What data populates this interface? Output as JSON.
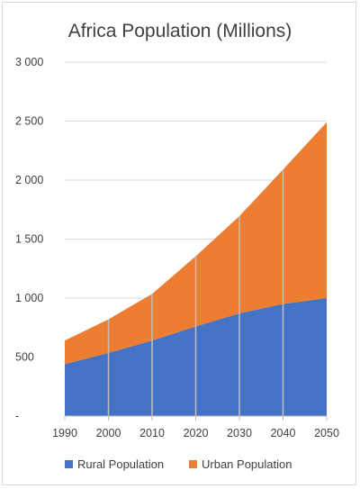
{
  "chart_data": {
    "type": "area",
    "stacked": true,
    "title": "Africa Population (Millions)",
    "xlabel": "",
    "ylabel": "",
    "x": [
      1990,
      2000,
      2010,
      2020,
      2030,
      2040,
      2050
    ],
    "x_tick_labels": [
      "1990",
      "2000",
      "2010",
      "2020",
      "2030",
      "2040",
      "2050"
    ],
    "ylim": [
      0,
      3000
    ],
    "y_ticks": [
      0,
      500,
      1000,
      1500,
      2000,
      2500,
      3000
    ],
    "y_tick_labels": [
      "-",
      "500",
      "1 000",
      "1 500",
      "2 000",
      "2 500",
      "3 000"
    ],
    "grid": true,
    "legend_position": "bottom",
    "series": [
      {
        "name": "Rural Population",
        "color": "#4472c4",
        "values": [
          440,
          535,
          640,
          760,
          870,
          950,
          1000
        ]
      },
      {
        "name": "Urban Population",
        "color": "#ed7d31",
        "values": [
          200,
          285,
          395,
          595,
          825,
          1140,
          1490
        ]
      }
    ],
    "gridline_color": "#d9d9d9",
    "vertical_line_color": "#bfbfbf"
  }
}
